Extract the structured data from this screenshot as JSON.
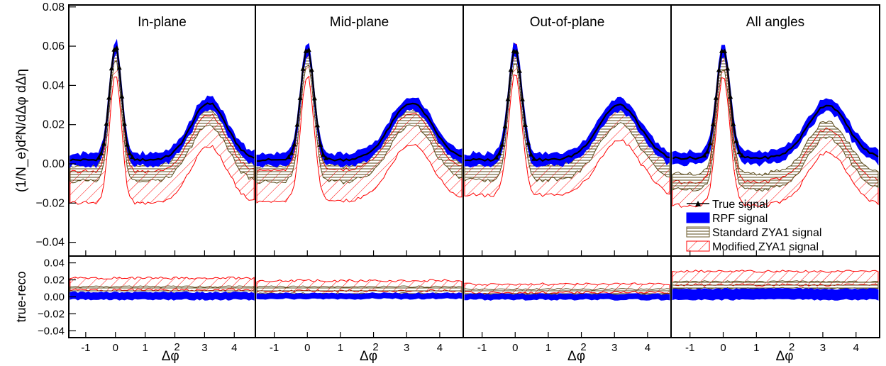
{
  "chart_data": {
    "type": "line",
    "ylabel_main": "(1/N_e)d²N/dΔφ dΔη",
    "ylabel_ratio": "true-reco",
    "xlabel": "Δφ",
    "xlim": [
      -1.57,
      4.71
    ],
    "ylim_main": [
      -0.047,
      0.081
    ],
    "ylim_ratio": [
      -0.048,
      0.048
    ],
    "x_ticks": [
      -1,
      0,
      1,
      2,
      3,
      4
    ],
    "y_ticks_main": [
      -0.04,
      -0.02,
      0.0,
      0.02,
      0.04,
      0.06,
      0.08
    ],
    "y_ticks_main_labels": [
      "−0.04",
      "−0.02",
      "0.00",
      "0.02",
      "0.04",
      "0.06",
      "0.08"
    ],
    "y_ticks_ratio": [
      -0.04,
      -0.02,
      0.0,
      0.02,
      0.04
    ],
    "y_ticks_ratio_labels": [
      "−0.04",
      "−0.02",
      "0.00",
      "0.02",
      "0.04"
    ],
    "legend": [
      {
        "name": "True signal",
        "style": "line-marker",
        "color": "#000000"
      },
      {
        "name": "RPF signal",
        "style": "fill",
        "color": "#0000ff"
      },
      {
        "name": "Standard ZYA1 signal",
        "style": "hatch-horizontal",
        "color": "#6b5a2a"
      },
      {
        "name": "Modified ZYA1 signal",
        "style": "hatch-diagonal",
        "color": "#ff0000"
      }
    ],
    "legend_placement": "lower-right of All angles panel",
    "panels": [
      {
        "title": "In-plane",
        "near_peak": 0.06,
        "away_peak": 0.031,
        "baseline": 0.002,
        "away_width": 0.85,
        "rpf_halfwidth": 0.003,
        "std_offset": 0.007,
        "std_halfwidth": 0.004,
        "mod_offset": 0.014,
        "mod_halfwidth": 0.008,
        "ratio": {
          "rpf": 0.001,
          "rpf_halfwidth": 0.004,
          "std": 0.008,
          "std_halfwidth": 0.004,
          "mod": 0.015,
          "mod_halfwidth": 0.007
        }
      },
      {
        "title": "Mid-plane",
        "near_peak": 0.059,
        "away_peak": 0.031,
        "baseline": 0.002,
        "away_width": 0.9,
        "rpf_halfwidth": 0.003,
        "std_offset": 0.007,
        "std_halfwidth": 0.004,
        "mod_offset": 0.013,
        "mod_halfwidth": 0.008,
        "ratio": {
          "rpf": 0.001,
          "rpf_halfwidth": 0.003,
          "std": 0.008,
          "std_halfwidth": 0.004,
          "mod": 0.013,
          "mod_halfwidth": 0.006
        }
      },
      {
        "title": "Out-of-plane",
        "near_peak": 0.059,
        "away_peak": 0.03,
        "baseline": 0.002,
        "away_width": 0.9,
        "rpf_halfwidth": 0.003,
        "std_offset": 0.006,
        "std_halfwidth": 0.004,
        "mod_offset": 0.01,
        "mod_halfwidth": 0.008,
        "ratio": {
          "rpf": 0.0,
          "rpf_halfwidth": 0.003,
          "std": 0.006,
          "std_halfwidth": 0.003,
          "mod": 0.01,
          "mod_halfwidth": 0.005
        }
      },
      {
        "title": "All angles",
        "near_peak": 0.059,
        "away_peak": 0.03,
        "baseline": 0.003,
        "away_width": 0.85,
        "rpf_halfwidth": 0.003,
        "std_offset": 0.012,
        "std_halfwidth": 0.004,
        "mod_offset": 0.018,
        "mod_halfwidth": 0.006,
        "ratio": {
          "rpf": 0.003,
          "rpf_halfwidth": 0.006,
          "std": 0.014,
          "std_halfwidth": 0.004,
          "mod": 0.022,
          "mod_halfwidth": 0.008
        }
      }
    ]
  }
}
